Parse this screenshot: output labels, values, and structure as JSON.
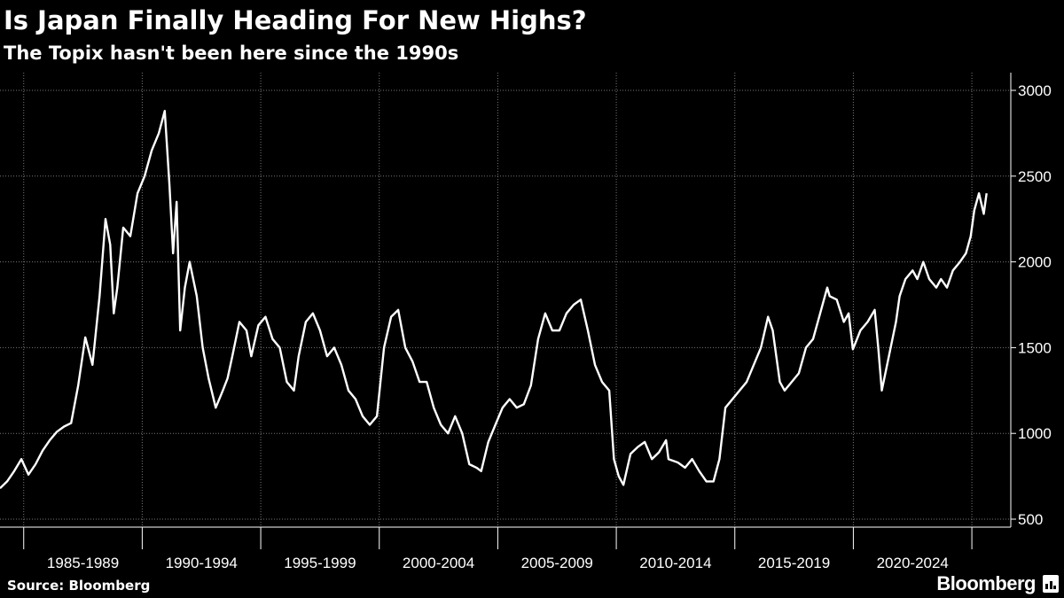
{
  "title": "Is Japan Finally Heading For New Highs?",
  "subtitle": "The Topix hasn't been here since the 1990s",
  "source": "Source: Bloomberg",
  "brand": "Bloomberg",
  "colors": {
    "background": "#000000",
    "line": "#ffffff",
    "grid": "#777777"
  },
  "chart_data": {
    "type": "line",
    "title": "",
    "xlabel": "",
    "ylabel": "",
    "ylim": [
      500,
      3000
    ],
    "yticks": [
      500,
      1000,
      1500,
      2000,
      2500,
      3000
    ],
    "y_axis_position": "right",
    "grid": true,
    "x_domain": [
      1983.0,
      2024.67
    ],
    "x_periods": [
      {
        "label": "1985-1989",
        "start": 1984,
        "end": 1989
      },
      {
        "label": "1990-1994",
        "start": 1989,
        "end": 1994
      },
      {
        "label": "1995-1999",
        "start": 1994,
        "end": 1999
      },
      {
        "label": "2000-2004",
        "start": 1999,
        "end": 2004
      },
      {
        "label": "2005-2009",
        "start": 2004,
        "end": 2009
      },
      {
        "label": "2010-2014",
        "start": 2009,
        "end": 2014
      },
      {
        "label": "2015-2019",
        "start": 2014,
        "end": 2019
      },
      {
        "label": "2020-2024",
        "start": 2019,
        "end": 2024
      }
    ],
    "series": [
      {
        "x": [
          1983.0,
          1983.3,
          1983.6,
          1983.9,
          1984.2,
          1984.5,
          1984.8,
          1985.1,
          1985.4,
          1985.7,
          1986.0,
          1986.3,
          1986.6,
          1986.9,
          1987.2,
          1987.45,
          1987.65,
          1987.8,
          1987.95,
          1988.2,
          1988.5,
          1988.8,
          1989.1,
          1989.4,
          1989.7,
          1989.95,
          1990.15,
          1990.3,
          1990.45,
          1990.6,
          1990.8,
          1991.0,
          1991.3,
          1991.55,
          1991.8,
          1992.1,
          1992.4,
          1992.6,
          1992.8,
          1993.1,
          1993.4,
          1993.6,
          1993.9,
          1994.2,
          1994.5,
          1994.8,
          1995.1,
          1995.4,
          1995.6,
          1995.9,
          1996.2,
          1996.5,
          1996.8,
          1997.1,
          1997.4,
          1997.7,
          1998.0,
          1998.3,
          1998.6,
          1998.9,
          1999.2,
          1999.5,
          1999.8,
          2000.1,
          2000.4,
          2000.7,
          2001.0,
          2001.3,
          2001.6,
          2001.9,
          2002.2,
          2002.5,
          2002.8,
          2003.1,
          2003.3,
          2003.6,
          2003.9,
          2004.2,
          2004.5,
          2004.8,
          2005.1,
          2005.4,
          2005.7,
          2006.0,
          2006.3,
          2006.6,
          2006.9,
          2007.2,
          2007.5,
          2007.8,
          2008.1,
          2008.4,
          2008.7,
          2008.9,
          2009.1,
          2009.3,
          2009.6,
          2009.9,
          2010.2,
          2010.5,
          2010.8,
          2011.1,
          2011.2,
          2011.6,
          2011.9,
          2012.2,
          2012.5,
          2012.8,
          2013.1,
          2013.35,
          2013.6,
          2013.9,
          2014.2,
          2014.5,
          2014.8,
          2015.1,
          2015.4,
          2015.6,
          2015.9,
          2016.1,
          2016.4,
          2016.7,
          2017.0,
          2017.3,
          2017.6,
          2017.9,
          2018.0,
          2018.3,
          2018.6,
          2018.8,
          2018.98,
          2019.3,
          2019.6,
          2019.9,
          2020.05,
          2020.2,
          2020.5,
          2020.8,
          2020.95,
          2021.2,
          2021.5,
          2021.7,
          2021.95,
          2022.2,
          2022.5,
          2022.7,
          2022.95,
          2023.2,
          2023.5,
          2023.75,
          2023.95,
          2024.1,
          2024.3,
          2024.5,
          2024.62
        ],
        "values": [
          680,
          720,
          780,
          850,
          760,
          820,
          900,
          960,
          1010,
          1040,
          1060,
          1280,
          1560,
          1400,
          1800,
          2250,
          2100,
          1700,
          1850,
          2200,
          2150,
          2400,
          2500,
          2650,
          2750,
          2880,
          2450,
          2050,
          2350,
          1600,
          1850,
          2000,
          1800,
          1500,
          1320,
          1150,
          1250,
          1320,
          1450,
          1650,
          1600,
          1450,
          1630,
          1680,
          1550,
          1500,
          1300,
          1250,
          1450,
          1650,
          1700,
          1600,
          1450,
          1500,
          1400,
          1250,
          1200,
          1100,
          1050,
          1100,
          1500,
          1680,
          1720,
          1500,
          1420,
          1300,
          1300,
          1150,
          1050,
          1000,
          1100,
          1000,
          820,
          800,
          780,
          950,
          1050,
          1150,
          1200,
          1150,
          1170,
          1280,
          1550,
          1700,
          1600,
          1600,
          1700,
          1750,
          1780,
          1600,
          1400,
          1300,
          1250,
          850,
          750,
          700,
          880,
          920,
          950,
          850,
          890,
          960,
          850,
          830,
          800,
          850,
          780,
          720,
          720,
          850,
          1150,
          1200,
          1250,
          1300,
          1400,
          1500,
          1680,
          1600,
          1300,
          1250,
          1300,
          1350,
          1500,
          1550,
          1700,
          1850,
          1800,
          1780,
          1650,
          1700,
          1490,
          1600,
          1650,
          1720,
          1500,
          1250,
          1450,
          1650,
          1800,
          1900,
          1950,
          1900,
          2000,
          1900,
          1850,
          1900,
          1850,
          1950,
          2000,
          2050,
          2150,
          2300,
          2400,
          2280,
          2400
        ]
      }
    ]
  }
}
